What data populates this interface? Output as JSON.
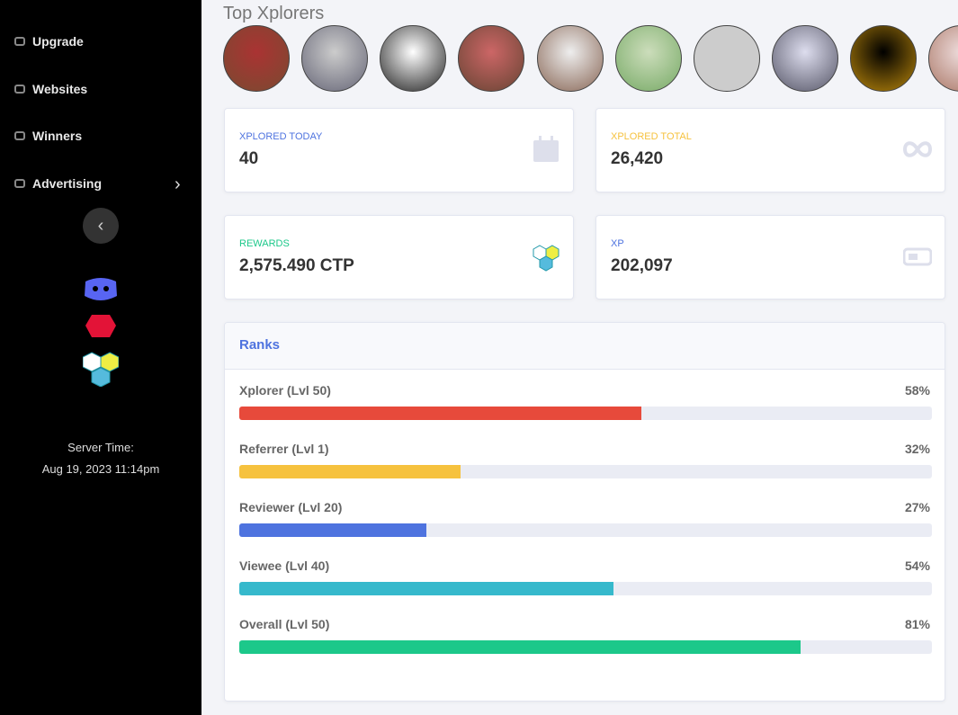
{
  "sidebar": {
    "menu": [
      {
        "label": "Upgrade"
      },
      {
        "label": "Websites"
      },
      {
        "label": "Winners"
      },
      {
        "label": "Advertising"
      }
    ],
    "server_time_label": "Server Time:",
    "server_time": "Aug 19, 2023 11:14pm"
  },
  "top_xplorers": {
    "title": "Top Xplorers"
  },
  "stats": [
    {
      "label": "XPLORED TODAY",
      "value": "40",
      "color": "#4e73df"
    },
    {
      "label": "XPLORED TOTAL",
      "value": "26,420",
      "color": "#f6c23e"
    },
    {
      "label": "REWARDS",
      "value": "2,575.490 CTP",
      "color": "#1cc88a"
    },
    {
      "label": "XP",
      "value": "202,097",
      "color": "#4e73df"
    }
  ],
  "ranks": {
    "title": "Ranks",
    "items": [
      {
        "name": "Xplorer (Lvl 50)",
        "value": 58,
        "label": "58%",
        "color": "#e74a3b"
      },
      {
        "name": "Referrer (Lvl 1)",
        "value": 32,
        "label": "32%",
        "color": "#f6c23e"
      },
      {
        "name": "Reviewer (Lvl 20)",
        "value": 27,
        "label": "27%",
        "color": "#4e73df"
      },
      {
        "name": "Viewee (Lvl 40)",
        "value": 54,
        "label": "54%",
        "color": "#36b9cc"
      },
      {
        "name": "Overall (Lvl 50)",
        "value": 81,
        "label": "81%",
        "color": "#1cc88a"
      }
    ]
  }
}
